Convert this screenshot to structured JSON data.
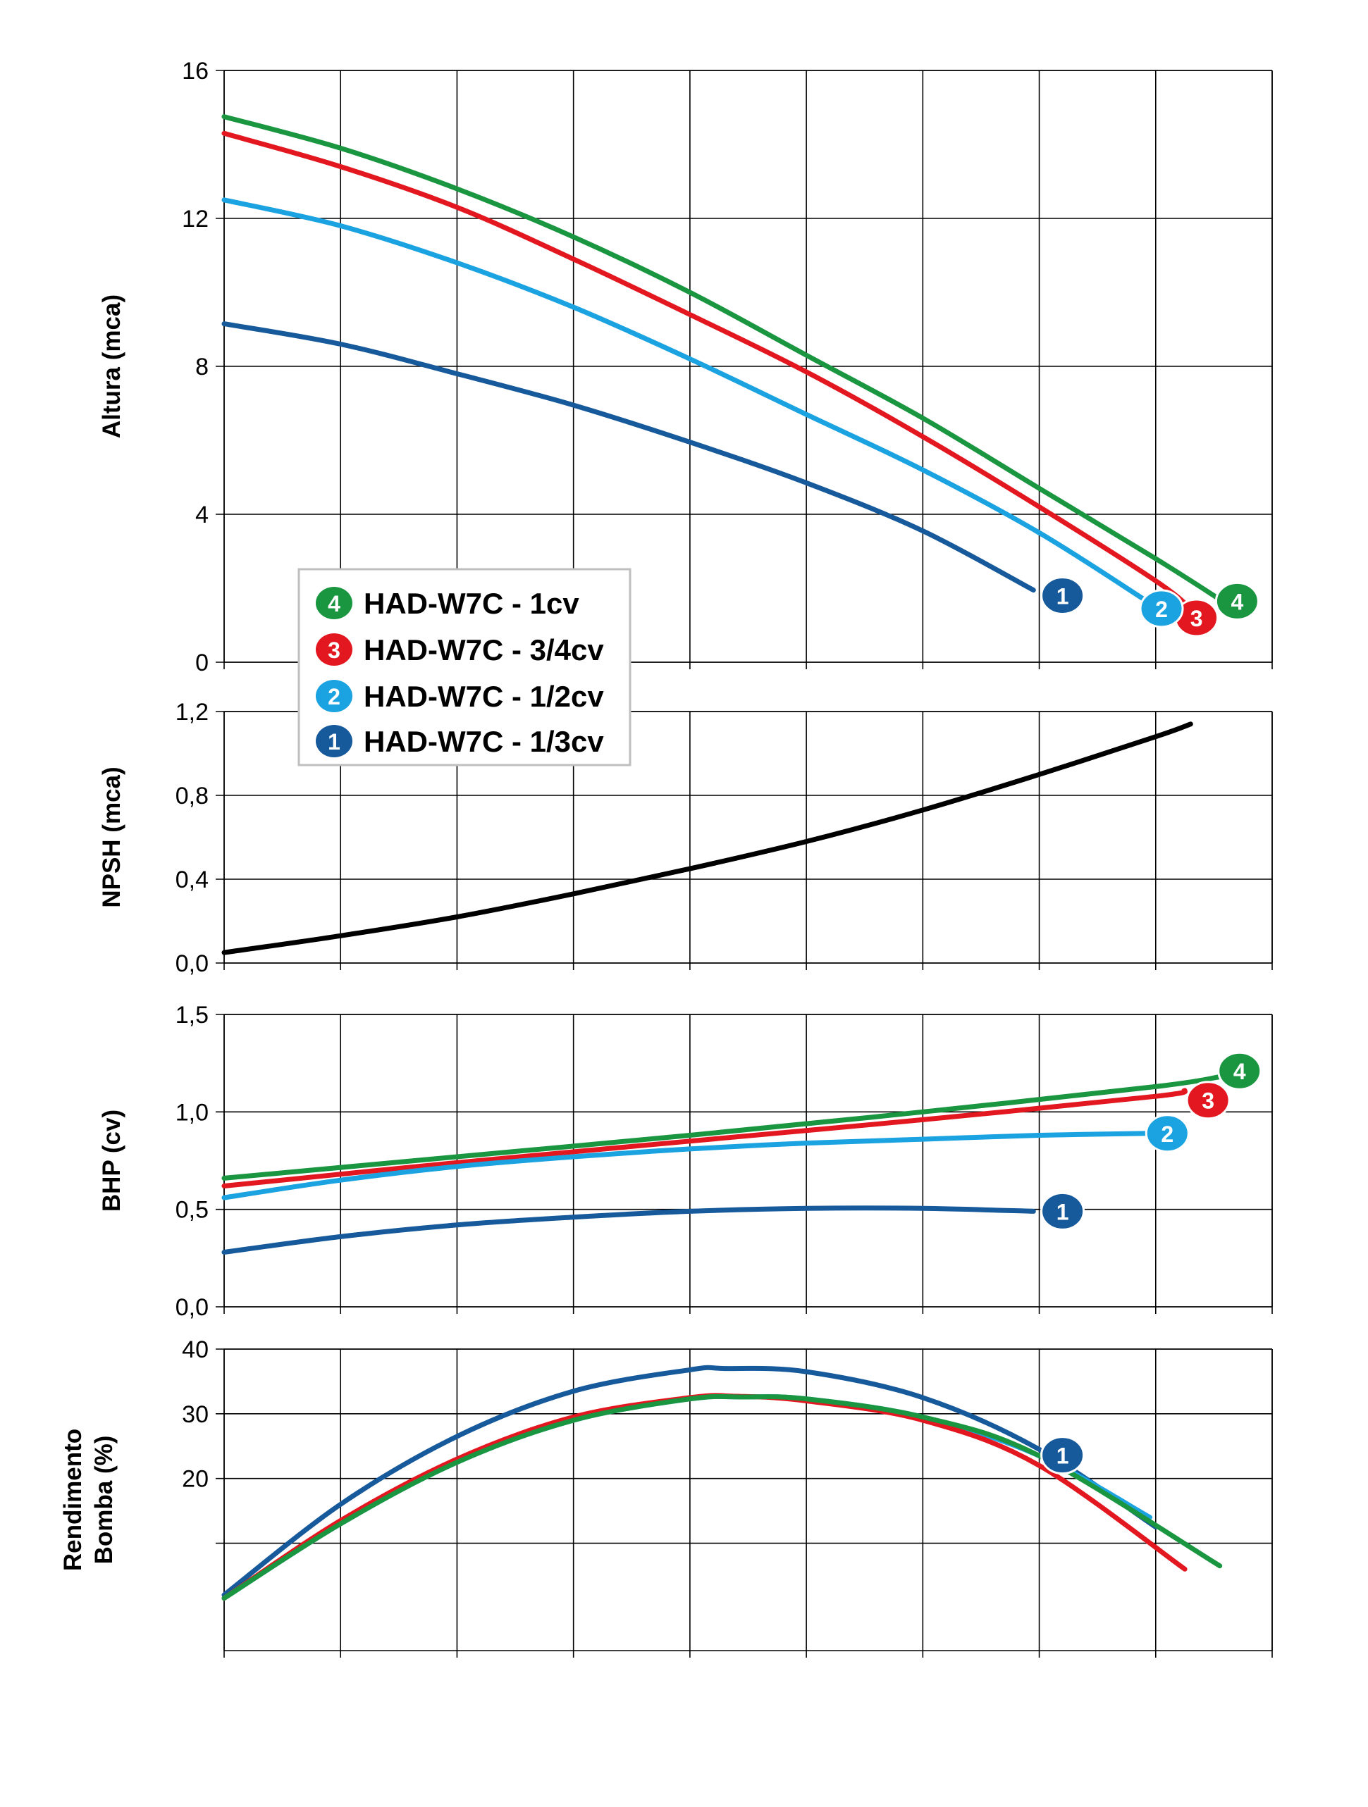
{
  "colors": {
    "s4": "#1a9641",
    "s3": "#e3171f",
    "s2": "#1aa3e0",
    "s1": "#175a9c",
    "npsh": "#000000",
    "grid": "#000000"
  },
  "legend": {
    "placement": "center-left",
    "entries": [
      {
        "badge": "4",
        "label": "HAD-W7C - 1cv",
        "color": "#1a9641"
      },
      {
        "badge": "3",
        "label": "HAD-W7C - 3/4cv",
        "color": "#e3171f"
      },
      {
        "badge": "2",
        "label": "HAD-W7C - 1/2cv",
        "color": "#1aa3e0"
      },
      {
        "badge": "1",
        "label": "HAD-W7C - 1/3cv",
        "color": "#175a9c"
      }
    ]
  },
  "chart_data": [
    {
      "id": "altura",
      "type": "line",
      "title": "",
      "xlabel": "",
      "ylabel": "Altura (mca)",
      "xlim": [
        0,
        9
      ],
      "ylim": [
        0,
        16
      ],
      "xgrid": 9,
      "yticks": [
        {
          "v": 0,
          "label": "0"
        },
        {
          "v": 4,
          "label": "4"
        },
        {
          "v": 8,
          "label": "8"
        },
        {
          "v": 12,
          "label": "12"
        },
        {
          "v": 16,
          "label": "16"
        }
      ],
      "series": [
        {
          "key": "s4",
          "color": "#1a9641",
          "badge": "4",
          "badge_at": [
            8.7,
            1.65
          ],
          "x": [
            0,
            1,
            2,
            3,
            4,
            5,
            6,
            7,
            8,
            8.55
          ],
          "y": [
            14.75,
            13.9,
            12.8,
            11.5,
            10.0,
            8.3,
            6.6,
            4.7,
            2.8,
            1.7
          ]
        },
        {
          "key": "s3",
          "color": "#e3171f",
          "badge": "3",
          "badge_at": [
            8.35,
            1.2
          ],
          "x": [
            0,
            1,
            2,
            3,
            4,
            5,
            6,
            7,
            8,
            8.3
          ],
          "y": [
            14.3,
            13.4,
            12.3,
            10.9,
            9.4,
            7.85,
            6.1,
            4.2,
            2.2,
            1.45
          ]
        },
        {
          "key": "s2",
          "color": "#1aa3e0",
          "badge": "2",
          "badge_at": [
            8.05,
            1.45
          ],
          "x": [
            0,
            1,
            2,
            3,
            4,
            5,
            6,
            7,
            7.9
          ],
          "y": [
            12.5,
            11.8,
            10.8,
            9.6,
            8.2,
            6.7,
            5.2,
            3.5,
            1.7
          ]
        },
        {
          "key": "s1",
          "color": "#175a9c",
          "badge": "1",
          "badge_at": [
            7.2,
            1.8
          ],
          "x": [
            0,
            1,
            2,
            3,
            4,
            5,
            6,
            6.95
          ],
          "y": [
            9.15,
            8.6,
            7.8,
            6.95,
            5.95,
            4.85,
            3.55,
            1.95
          ]
        }
      ]
    },
    {
      "id": "npsh",
      "type": "line",
      "title": "",
      "xlabel": "",
      "ylabel": "NPSH (mca)",
      "xlim": [
        0,
        9
      ],
      "ylim": [
        0,
        1.2
      ],
      "xgrid": 9,
      "yticks": [
        {
          "v": 0,
          "label": "0,0"
        },
        {
          "v": 0.4,
          "label": "0,4"
        },
        {
          "v": 0.8,
          "label": "0,8"
        },
        {
          "v": 1.2,
          "label": "1,2"
        }
      ],
      "series": [
        {
          "key": "npsh",
          "color": "#000000",
          "x": [
            0,
            1,
            2,
            3,
            4,
            5,
            6,
            7,
            8,
            8.3
          ],
          "y": [
            0.05,
            0.13,
            0.22,
            0.33,
            0.45,
            0.58,
            0.73,
            0.9,
            1.08,
            1.14
          ]
        }
      ]
    },
    {
      "id": "bhp",
      "type": "line",
      "title": "",
      "xlabel": "",
      "ylabel": "BHP (cv)",
      "xlim": [
        0,
        9
      ],
      "ylim": [
        0,
        1.5
      ],
      "xgrid": 9,
      "yticks": [
        {
          "v": 0,
          "label": "0,0"
        },
        {
          "v": 0.5,
          "label": "0,5"
        },
        {
          "v": 1.0,
          "label": "1,0"
        },
        {
          "v": 1.5,
          "label": "1,5"
        }
      ],
      "series": [
        {
          "key": "s4",
          "color": "#1a9641",
          "badge": "4",
          "badge_at": [
            8.72,
            1.21
          ],
          "x": [
            0,
            2,
            4,
            6,
            8,
            8.55
          ],
          "y": [
            0.66,
            0.77,
            0.88,
            1.0,
            1.13,
            1.18
          ]
        },
        {
          "key": "s3",
          "color": "#e3171f",
          "badge": "3",
          "badge_at": [
            8.45,
            1.06
          ],
          "x": [
            0,
            2,
            4,
            6,
            8,
            8.25
          ],
          "y": [
            0.62,
            0.74,
            0.85,
            0.96,
            1.08,
            1.11
          ]
        },
        {
          "key": "s2",
          "color": "#1aa3e0",
          "badge": "2",
          "badge_at": [
            8.1,
            0.89
          ],
          "x": [
            0,
            1,
            2,
            3,
            4,
            5,
            6,
            7,
            7.95
          ],
          "y": [
            0.56,
            0.65,
            0.72,
            0.77,
            0.81,
            0.84,
            0.86,
            0.88,
            0.89
          ]
        },
        {
          "key": "s1",
          "color": "#175a9c",
          "badge": "1",
          "badge_at": [
            7.2,
            0.49
          ],
          "x": [
            0,
            1,
            2,
            3,
            4,
            5,
            6,
            6.95
          ],
          "y": [
            0.28,
            0.36,
            0.42,
            0.46,
            0.49,
            0.505,
            0.505,
            0.49
          ]
        }
      ]
    },
    {
      "id": "rendimento",
      "type": "line",
      "title": "",
      "xlabel": "",
      "ylabel": "Rendimento Bomba (%)",
      "ylabel_lines": [
        "Rendimento",
        "Bomba (%)"
      ],
      "xlim": [
        0,
        9
      ],
      "ylim": [
        0,
        40
      ],
      "y_bottom": 1.9,
      "xgrid": 9,
      "yticks": [
        {
          "v": 20,
          "label": "20"
        },
        {
          "v": 30,
          "label": "30"
        },
        {
          "v": 40,
          "label": "40"
        },
        {
          "v": 10,
          "label": ""
        }
      ],
      "series": [
        {
          "key": "s1",
          "color": "#175a9c",
          "badge": "1",
          "badge_at": [
            7.2,
            23.6
          ],
          "x": [
            0,
            1,
            2,
            3,
            4,
            4.3,
            5,
            6,
            7,
            8
          ],
          "y": [
            2.0,
            16.0,
            26.5,
            33.5,
            36.8,
            37.0,
            36.5,
            32.5,
            24.5,
            12.5
          ]
        },
        {
          "key": "s2",
          "color": "#1aa3e0",
          "x": [
            0,
            1,
            2,
            3,
            4,
            4.45,
            5,
            6,
            7,
            7.95
          ],
          "y": [
            1.5,
            13.0,
            22.5,
            29.0,
            32.3,
            32.6,
            32.3,
            29.5,
            23.5,
            14.0
          ]
        },
        {
          "key": "s3",
          "color": "#e3171f",
          "x": [
            0,
            1,
            2,
            3,
            4,
            4.4,
            5,
            6,
            7,
            8.25
          ],
          "y": [
            1.5,
            13.5,
            23.0,
            29.5,
            32.5,
            32.7,
            32.0,
            29.0,
            22.0,
            6.0
          ]
        },
        {
          "key": "s4",
          "color": "#1a9641",
          "x": [
            0,
            1,
            2,
            3,
            4,
            4.45,
            5,
            6,
            7,
            8.55
          ],
          "y": [
            1.5,
            13.0,
            22.5,
            29.0,
            32.3,
            32.6,
            32.3,
            29.5,
            23.5,
            6.5
          ]
        }
      ]
    }
  ]
}
